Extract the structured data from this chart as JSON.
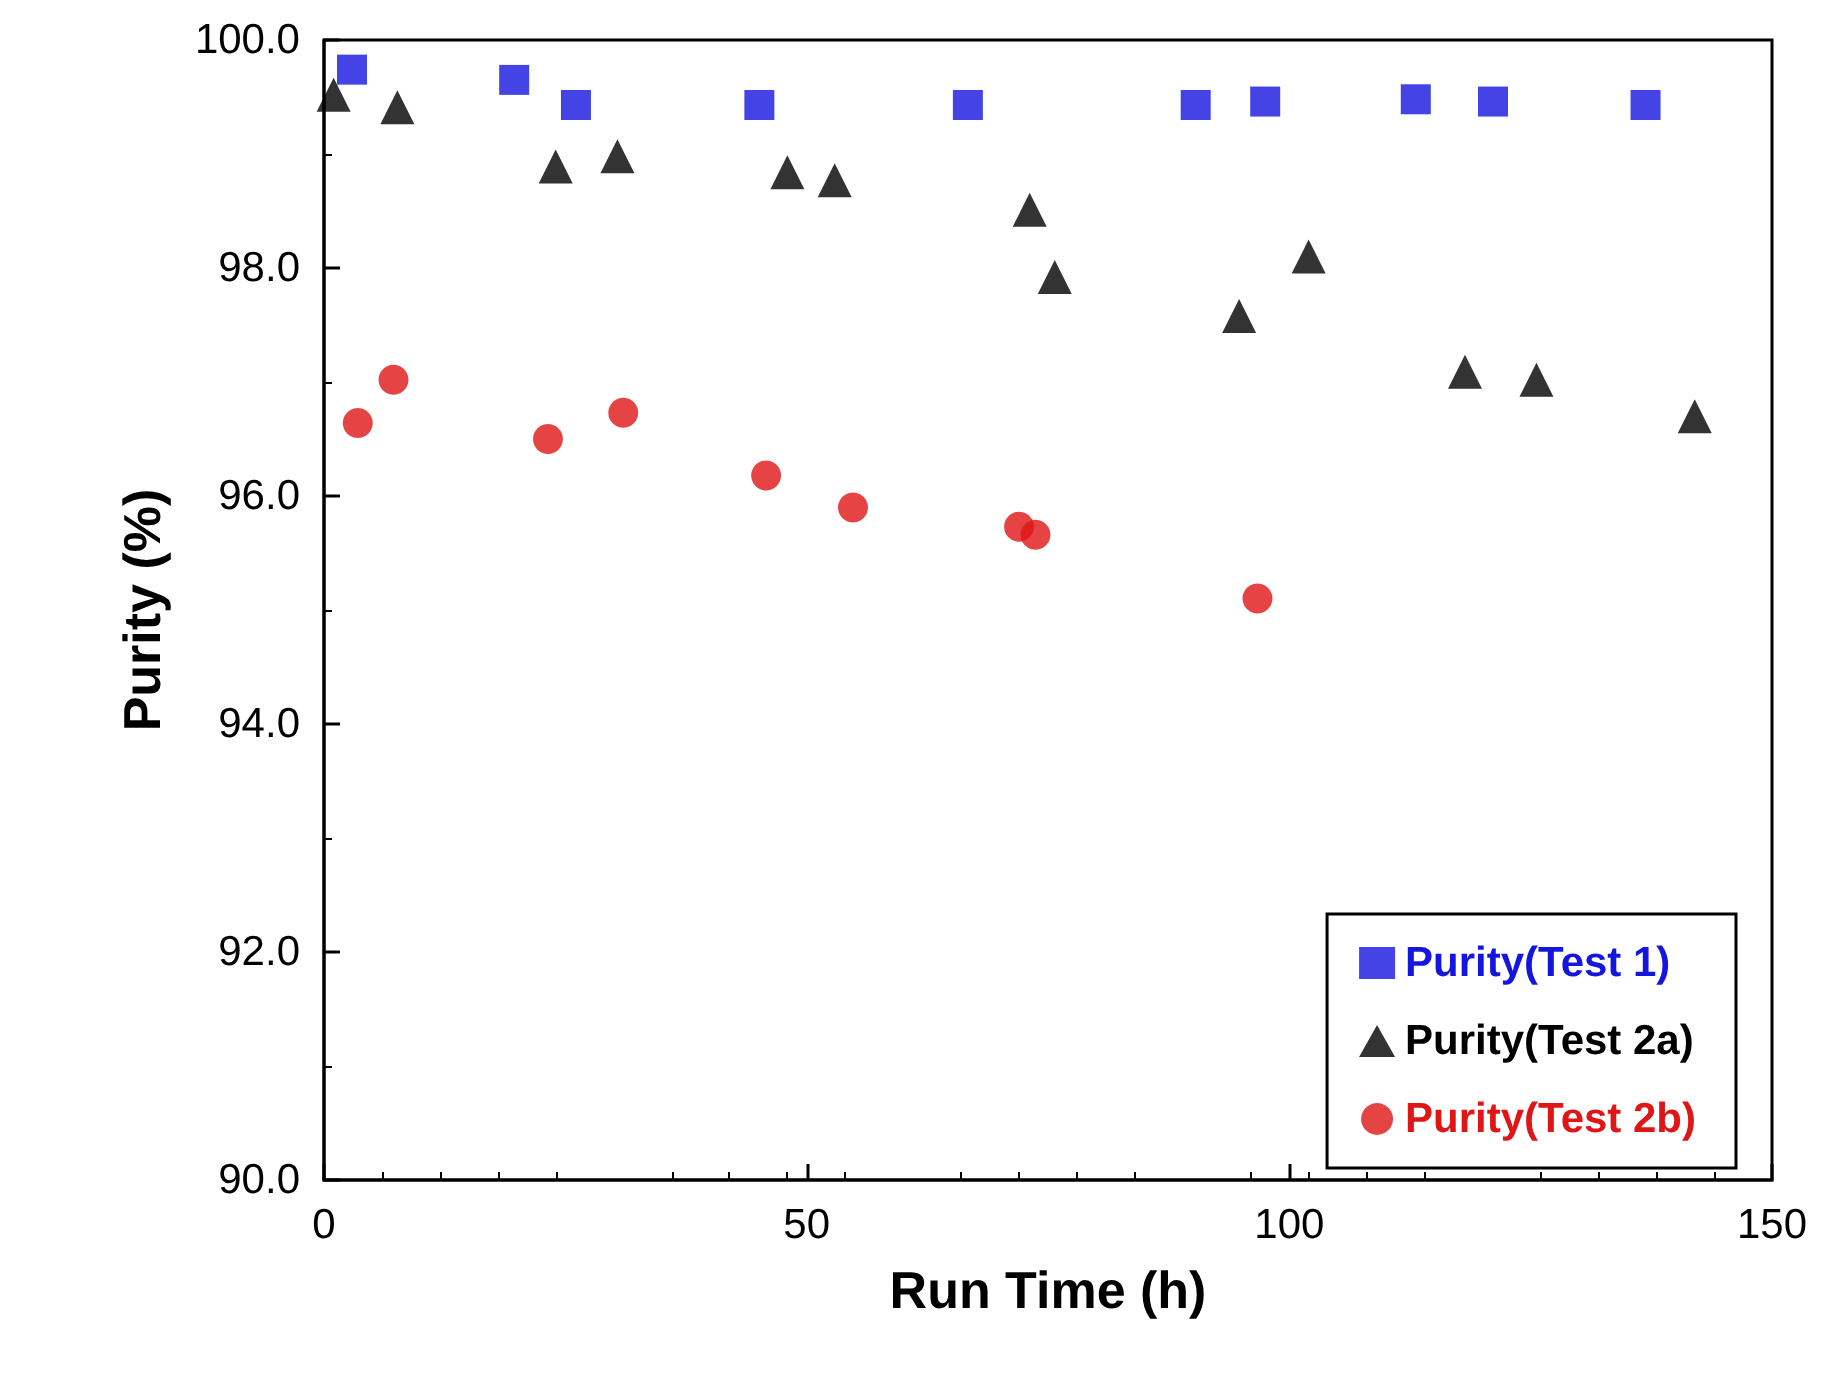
{
  "chart_data": {
    "type": "scatter",
    "xlabel": "Run Time (h)",
    "ylabel": "Purity (%)",
    "xlim": [
      0,
      150
    ],
    "xticks": [
      0,
      50,
      100,
      150
    ],
    "ylim": [
      90,
      100
    ],
    "yticks": [
      {
        "value": 90,
        "label": "90.0"
      },
      {
        "value": 92,
        "label": "92.0"
      },
      {
        "value": 94,
        "label": "94.0"
      },
      {
        "value": 96,
        "label": "96.0"
      },
      {
        "value": 98,
        "label": "98.0"
      },
      {
        "value": 100,
        "label": "100.0"
      }
    ],
    "grid": false,
    "legend": "bottom right",
    "series": [
      {
        "name": "Purity(Test 1)",
        "color": "#1515e0",
        "marker": "square",
        "x": [
          2.9,
          19.7,
          26.1,
          45.1,
          66.7,
          90.3,
          97.5,
          113.1,
          121.1,
          136.9
        ],
        "values": [
          99.74,
          99.65,
          99.43,
          99.43,
          99.43,
          99.43,
          99.46,
          99.48,
          99.46,
          99.43
        ]
      },
      {
        "name": "Purity(Test 2a)",
        "color": "#000000",
        "marker": "triangle",
        "x": [
          1.0,
          7.6,
          24.0,
          30.4,
          48.0,
          52.9,
          73.1,
          75.7,
          94.8,
          102.0,
          118.2,
          125.6,
          142.0
        ],
        "values": [
          99.52,
          99.41,
          98.89,
          98.98,
          98.84,
          98.77,
          98.51,
          97.92,
          97.58,
          98.1,
          97.09,
          97.02,
          96.7
        ]
      },
      {
        "name": "Purity(Test 2b)",
        "color": "#e01515",
        "marker": "circle",
        "x": [
          3.5,
          7.2,
          23.2,
          31.0,
          45.8,
          54.8,
          72.0,
          73.7,
          96.7
        ],
        "values": [
          96.64,
          97.02,
          96.5,
          96.73,
          96.18,
          95.9,
          95.73,
          95.66,
          95.1
        ]
      }
    ]
  }
}
